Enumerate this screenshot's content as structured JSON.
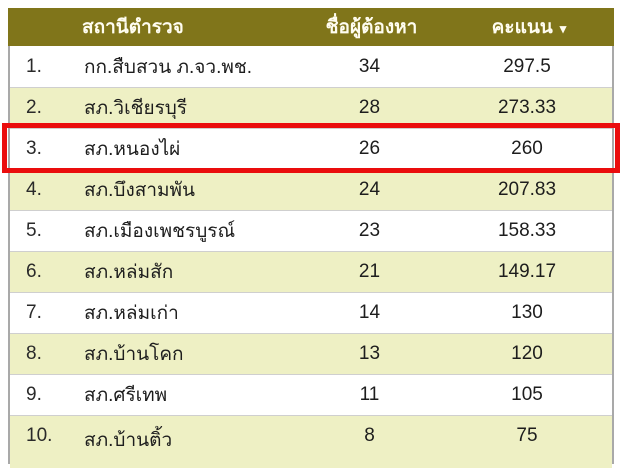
{
  "table": {
    "header": {
      "rank_label": "",
      "station_label": "สถานีตำรวจ",
      "suspects_label": "ชื่อผู้ต้องหา",
      "score_label": "คะแนน",
      "sort_icon": "▾",
      "sort_state": "descending"
    },
    "rows": [
      {
        "rank": "1.",
        "station": "กก.สืบสวน ภ.จว.พช.",
        "suspects": "34",
        "score": "297.5",
        "highlighted": false
      },
      {
        "rank": "2.",
        "station": "สภ.วิเชียรบุรี",
        "suspects": "28",
        "score": "273.33",
        "highlighted": false
      },
      {
        "rank": "3.",
        "station": "สภ.หนองไผ่",
        "suspects": "26",
        "score": "260",
        "highlighted": true
      },
      {
        "rank": "4.",
        "station": "สภ.บึงสามพัน",
        "suspects": "24",
        "score": "207.83",
        "highlighted": false
      },
      {
        "rank": "5.",
        "station": "สภ.เมืองเพชรบูรณ์",
        "suspects": "23",
        "score": "158.33",
        "highlighted": false
      },
      {
        "rank": "6.",
        "station": "สภ.หล่มสัก",
        "suspects": "21",
        "score": "149.17",
        "highlighted": false
      },
      {
        "rank": "7.",
        "station": "สภ.หล่มเก่า",
        "suspects": "14",
        "score": "130",
        "highlighted": false
      },
      {
        "rank": "8.",
        "station": "สภ.บ้านโคก",
        "suspects": "13",
        "score": "120",
        "highlighted": false
      },
      {
        "rank": "9.",
        "station": "สภ.ศรีเทพ",
        "suspects": "11",
        "score": "105",
        "highlighted": false
      },
      {
        "rank": "10.",
        "station": "สภ.บ้านติ้ว",
        "suspects": "8",
        "score": "75",
        "highlighted": false
      }
    ],
    "colors": {
      "header_bg": "#80751a",
      "header_text": "#fffdf0",
      "row_bg": "#ffffff",
      "row_alt_bg": "#eef0c4",
      "divider": "#cfcfcf",
      "outer_border": "#a9a9a9",
      "highlight_border": "#ea0d0d",
      "text": "#1d1d1d"
    }
  }
}
